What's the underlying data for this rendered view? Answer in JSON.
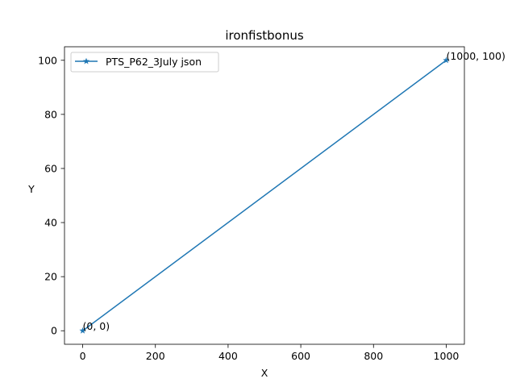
{
  "chart_data": {
    "type": "line",
    "title": "ironfistbonus",
    "xlabel": "X",
    "ylabel": "Y",
    "xlim": [
      -50,
      1050
    ],
    "ylim": [
      -5,
      105
    ],
    "xticks": [
      0,
      200,
      400,
      600,
      800,
      1000
    ],
    "yticks": [
      0,
      20,
      40,
      60,
      80,
      100
    ],
    "xtick_labels": [
      "0",
      "200",
      "400",
      "600",
      "800",
      "1000"
    ],
    "ytick_labels": [
      "0",
      "20",
      "40",
      "60",
      "80",
      "100"
    ],
    "grid": false,
    "legend_position": "top-left",
    "series": [
      {
        "name": "PTS_P62_3July json",
        "color": "#1f77b4",
        "marker": "star",
        "x": [
          0,
          1000
        ],
        "y": [
          0,
          100
        ]
      }
    ],
    "annotations": [
      {
        "x": 0,
        "y": 0,
        "text": "(0, 0)"
      },
      {
        "x": 1000,
        "y": 100,
        "text": "(1000, 100)"
      }
    ]
  }
}
